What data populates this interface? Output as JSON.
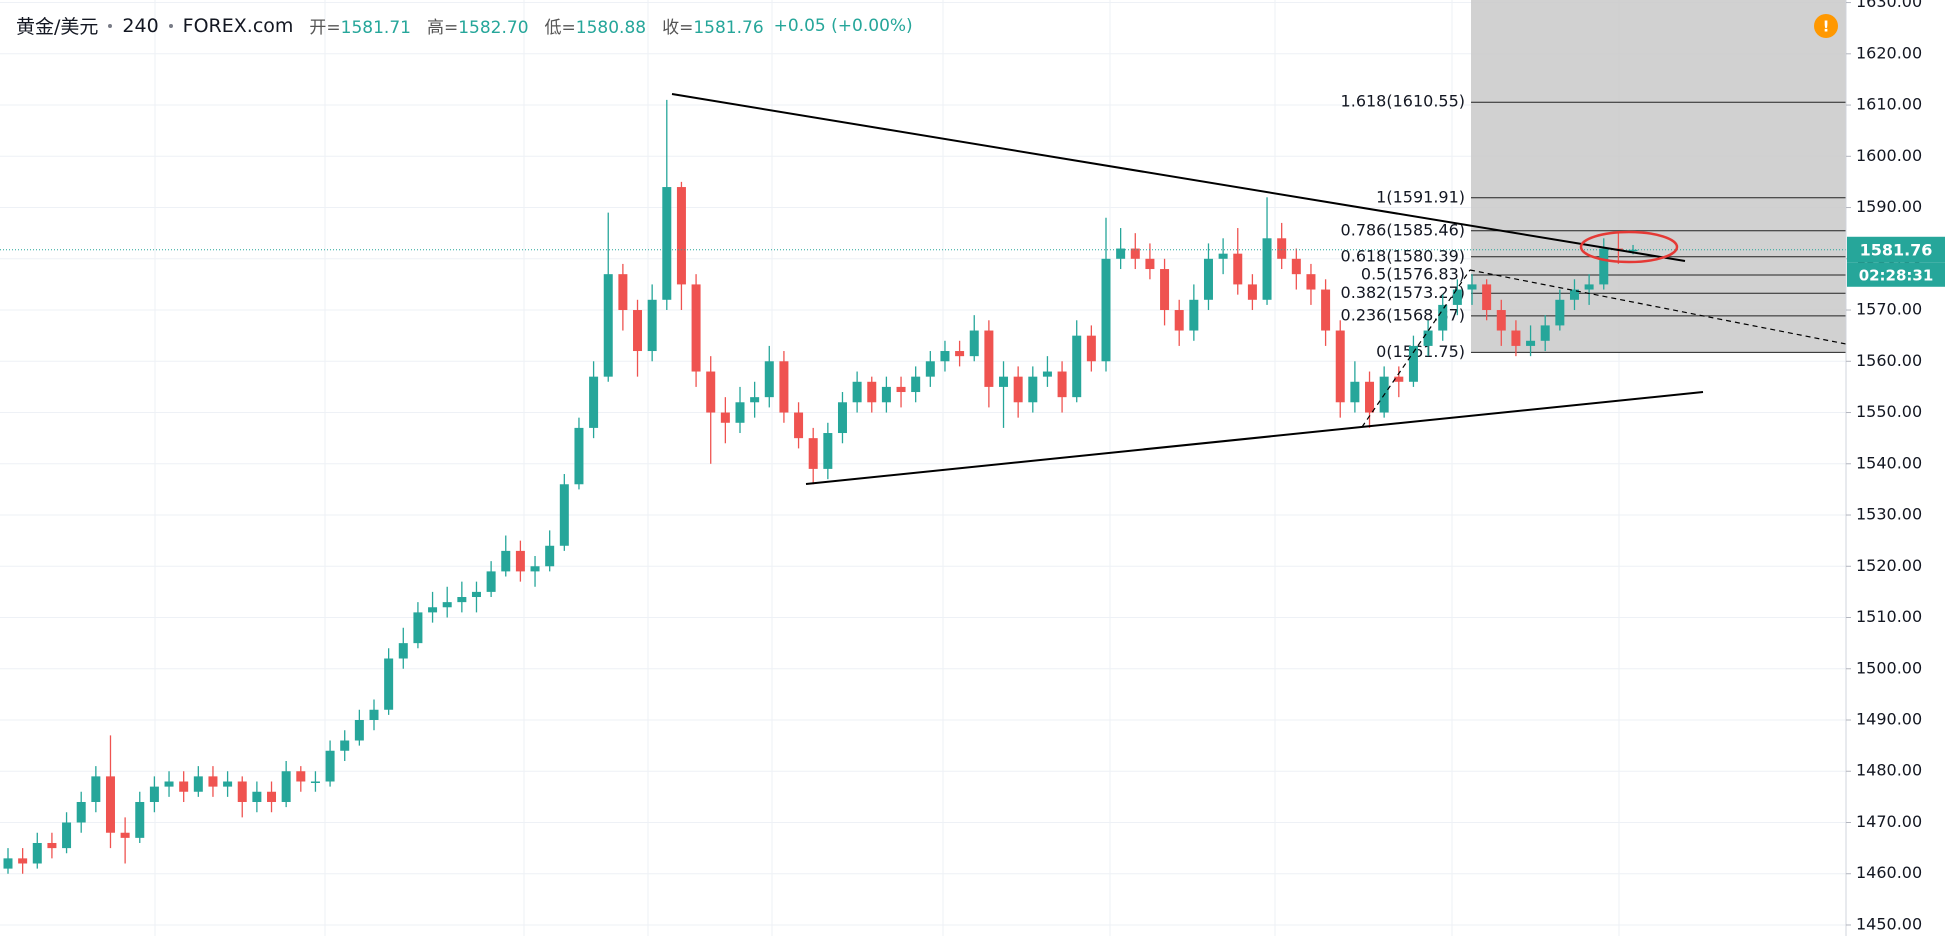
{
  "header": {
    "symbol": "黄金/美元",
    "interval": "240",
    "source": "FOREX.com",
    "ohlc": [
      {
        "key": "开=",
        "text": "1581.71"
      },
      {
        "key": "高=",
        "text": "1582.70"
      },
      {
        "key": "低=",
        "text": "1580.88"
      },
      {
        "key": "收=",
        "text": "1581.76"
      }
    ],
    "change": "+0.05 (+0.00%)",
    "alert": "!"
  },
  "chart_data": {
    "type": "candlestick",
    "up_color": "#26a69a",
    "down_color": "#ef5350",
    "last_price_color": "#26a69a",
    "countdown": "02:28:31",
    "candles": [
      [
        1461,
        1465,
        1460,
        1463
      ],
      [
        1463,
        1465,
        1460,
        1462
      ],
      [
        1462,
        1468,
        1461,
        1466
      ],
      [
        1466,
        1468,
        1463,
        1465
      ],
      [
        1465,
        1472,
        1464,
        1470
      ],
      [
        1470,
        1476,
        1468,
        1474
      ],
      [
        1474,
        1481,
        1472,
        1479
      ],
      [
        1479,
        1487,
        1465,
        1468
      ],
      [
        1468,
        1471,
        1462,
        1467
      ],
      [
        1467,
        1476,
        1466,
        1474
      ],
      [
        1474,
        1479,
        1472,
        1477
      ],
      [
        1477,
        1480,
        1475,
        1478
      ],
      [
        1478,
        1480,
        1474,
        1476
      ],
      [
        1476,
        1481,
        1475,
        1479
      ],
      [
        1479,
        1481,
        1475,
        1477
      ],
      [
        1477,
        1480,
        1475,
        1478
      ],
      [
        1478,
        1479,
        1471,
        1474
      ],
      [
        1474,
        1478,
        1472,
        1476
      ],
      [
        1476,
        1478,
        1472,
        1474
      ],
      [
        1474,
        1482,
        1473,
        1480
      ],
      [
        1480,
        1481,
        1476,
        1478
      ],
      [
        1478,
        1480,
        1476,
        1478
      ],
      [
        1478,
        1486,
        1477,
        1484
      ],
      [
        1484,
        1488,
        1482,
        1486
      ],
      [
        1486,
        1492,
        1485,
        1490
      ],
      [
        1490,
        1494,
        1488,
        1492
      ],
      [
        1492,
        1504,
        1491,
        1502
      ],
      [
        1502,
        1508,
        1500,
        1505
      ],
      [
        1505,
        1513,
        1504,
        1511
      ],
      [
        1511,
        1515,
        1509,
        1512
      ],
      [
        1512,
        1516,
        1510,
        1513
      ],
      [
        1513,
        1517,
        1511,
        1514
      ],
      [
        1514,
        1517,
        1511,
        1515
      ],
      [
        1515,
        1521,
        1514,
        1519
      ],
      [
        1519,
        1526,
        1518,
        1523
      ],
      [
        1523,
        1525,
        1517,
        1519
      ],
      [
        1519,
        1522,
        1516,
        1520
      ],
      [
        1520,
        1527,
        1519,
        1524
      ],
      [
        1524,
        1538,
        1523,
        1536
      ],
      [
        1536,
        1549,
        1535,
        1547
      ],
      [
        1547,
        1560,
        1545,
        1557
      ],
      [
        1557,
        1589,
        1556,
        1577
      ],
      [
        1577,
        1579,
        1566,
        1570
      ],
      [
        1570,
        1572,
        1557,
        1562
      ],
      [
        1562,
        1575,
        1560,
        1572
      ],
      [
        1572,
        1611,
        1570,
        1594
      ],
      [
        1594,
        1595,
        1570,
        1575
      ],
      [
        1575,
        1577,
        1555,
        1558
      ],
      [
        1558,
        1561,
        1540,
        1550
      ],
      [
        1550,
        1553,
        1544,
        1548
      ],
      [
        1548,
        1555,
        1546,
        1552
      ],
      [
        1552,
        1556,
        1549,
        1553
      ],
      [
        1553,
        1563,
        1551,
        1560
      ],
      [
        1560,
        1562,
        1548,
        1550
      ],
      [
        1550,
        1552,
        1543,
        1545
      ],
      [
        1545,
        1547,
        1536,
        1539
      ],
      [
        1539,
        1548,
        1537,
        1546
      ],
      [
        1546,
        1554,
        1544,
        1552
      ],
      [
        1552,
        1558,
        1550,
        1556
      ],
      [
        1556,
        1557,
        1550,
        1552
      ],
      [
        1552,
        1557,
        1550,
        1555
      ],
      [
        1555,
        1557,
        1551,
        1554
      ],
      [
        1554,
        1559,
        1552,
        1557
      ],
      [
        1557,
        1562,
        1555,
        1560
      ],
      [
        1560,
        1564,
        1558,
        1562
      ],
      [
        1562,
        1564,
        1559,
        1561
      ],
      [
        1561,
        1569,
        1560,
        1566
      ],
      [
        1566,
        1568,
        1551,
        1555
      ],
      [
        1555,
        1560,
        1547,
        1557
      ],
      [
        1557,
        1559,
        1549,
        1552
      ],
      [
        1552,
        1559,
        1550,
        1557
      ],
      [
        1557,
        1561,
        1555,
        1558
      ],
      [
        1558,
        1560,
        1550,
        1553
      ],
      [
        1553,
        1568,
        1552,
        1565
      ],
      [
        1565,
        1567,
        1558,
        1560
      ],
      [
        1560,
        1588,
        1558,
        1580
      ],
      [
        1580,
        1586,
        1578,
        1582
      ],
      [
        1582,
        1585,
        1578,
        1580
      ],
      [
        1580,
        1583,
        1576,
        1578
      ],
      [
        1578,
        1580,
        1567,
        1570
      ],
      [
        1570,
        1572,
        1563,
        1566
      ],
      [
        1566,
        1575,
        1564,
        1572
      ],
      [
        1572,
        1583,
        1570,
        1580
      ],
      [
        1580,
        1584,
        1577,
        1581
      ],
      [
        1581,
        1586,
        1573,
        1575
      ],
      [
        1575,
        1577,
        1570,
        1572
      ],
      [
        1572,
        1592,
        1571,
        1584
      ],
      [
        1584,
        1587,
        1578,
        1580
      ],
      [
        1580,
        1582,
        1574,
        1577
      ],
      [
        1577,
        1579,
        1571,
        1574
      ],
      [
        1574,
        1576,
        1563,
        1566
      ],
      [
        1566,
        1568,
        1549,
        1552
      ],
      [
        1552,
        1560,
        1550,
        1556
      ],
      [
        1556,
        1558,
        1547,
        1550
      ],
      [
        1550,
        1559,
        1549,
        1557
      ],
      [
        1557,
        1559,
        1553,
        1556
      ],
      [
        1556,
        1565,
        1555,
        1563
      ],
      [
        1563,
        1568,
        1561,
        1566
      ],
      [
        1566,
        1573,
        1564,
        1571
      ],
      [
        1571,
        1576,
        1569,
        1574
      ],
      [
        1574,
        1577,
        1571,
        1575
      ],
      [
        1575,
        1576,
        1568,
        1570
      ],
      [
        1570,
        1572,
        1563,
        1566
      ],
      [
        1566,
        1568,
        1561,
        1563
      ],
      [
        1563,
        1567,
        1561,
        1564
      ],
      [
        1564,
        1569,
        1562,
        1567
      ],
      [
        1567,
        1574,
        1566,
        1572
      ],
      [
        1572,
        1576,
        1570,
        1574
      ],
      [
        1574,
        1577,
        1571,
        1575
      ],
      [
        1575,
        1584,
        1574,
        1582
      ],
      [
        1582,
        1585,
        1579,
        1581.71
      ],
      [
        1581.71,
        1582.7,
        1580.88,
        1581.76
      ]
    ],
    "ylim": [
      1447.85,
      1630.5
    ],
    "yticks": [
      {
        "value": 1450,
        "label": "1450.00"
      },
      {
        "value": 1460,
        "label": "1460.00"
      },
      {
        "value": 1470,
        "label": "1470.00"
      },
      {
        "value": 1480,
        "label": "1480.00"
      },
      {
        "value": 1490,
        "label": "1490.00"
      },
      {
        "value": 1500,
        "label": "1500.00"
      },
      {
        "value": 1510,
        "label": "1510.00"
      },
      {
        "value": 1520,
        "label": "1520.00"
      },
      {
        "value": 1530,
        "label": "1530.00"
      },
      {
        "value": 1540,
        "label": "1540.00"
      },
      {
        "value": 1550,
        "label": "1550.00"
      },
      {
        "value": 1560,
        "label": "1560.00"
      },
      {
        "value": 1570,
        "label": "1570.00"
      },
      {
        "value": 1580,
        "label": "1580.00"
      },
      {
        "value": 1590,
        "label": "1590.00"
      },
      {
        "value": 1600,
        "label": "1600.00"
      },
      {
        "value": 1610,
        "label": "1610.00"
      },
      {
        "value": 1620,
        "label": "1620.00"
      },
      {
        "value": 1630,
        "label": "1630.00"
      }
    ],
    "grid": true,
    "fibonacci": {
      "levels": [
        {
          "value": 1610.55,
          "label": "1.618(1610.55)"
        },
        {
          "value": 1591.91,
          "label": "1(1591.91)"
        },
        {
          "value": 1585.46,
          "label": "0.786(1585.46)"
        },
        {
          "value": 1580.39,
          "label": "0.618(1580.39)"
        },
        {
          "value": 1576.83,
          "label": "0.5(1576.83)"
        },
        {
          "value": 1573.27,
          "label": "0.382(1573.27)"
        },
        {
          "value": 1568.87,
          "label": "0.236(1568.87)"
        },
        {
          "value": 1561.75,
          "label": "0(1561.75)"
        }
      ]
    }
  }
}
